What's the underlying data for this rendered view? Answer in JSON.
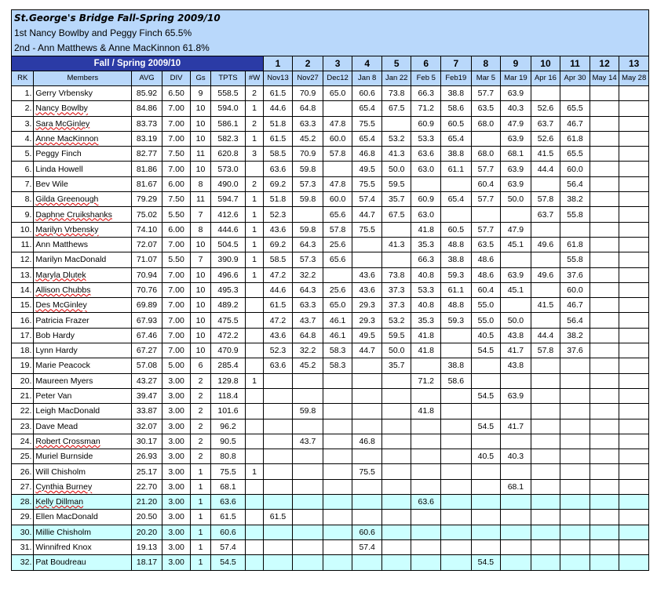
{
  "sheet": {
    "title": "St.George's Bridge Fall-Spring 2009/10",
    "line1": "1st Nancy Bowlby and Peggy Finch 65.5%",
    "line2": "2nd - Ann Matthews & Anne MacKinnon 61.8%"
  },
  "header": {
    "season": "Fall / Spring 2009/10",
    "game_numbers": [
      "1",
      "2",
      "3",
      "4",
      "5",
      "6",
      "7",
      "8",
      "9",
      "10",
      "11",
      "12",
      "13"
    ],
    "columns": [
      "RK",
      "Members",
      "AVG",
      "DIV",
      "Gs",
      "TPTS",
      "#W"
    ],
    "dates": [
      "Nov13",
      "Nov27",
      "Dec12",
      "Jan 8",
      "Jan 22",
      "Feb 5",
      "Feb19",
      "Mar 5",
      "Mar 19",
      "Apr 16",
      "Apr 30",
      "May 14",
      "May 28"
    ]
  },
  "rows": [
    {
      "rk": "1.",
      "name": "Gerry Vrbensky",
      "avg": "85.92",
      "div": "6.50",
      "gs": "9",
      "tpts": "558.5",
      "w": "2",
      "scores": [
        "61.5",
        "70.9",
        "65.0",
        "60.6",
        "73.8",
        "66.3",
        "38.8",
        "57.7",
        "63.9",
        "",
        "",
        "",
        ""
      ],
      "highlight": false
    },
    {
      "rk": "2.",
      "name": "Nancy Bowlby",
      "avg": "84.86",
      "div": "7.00",
      "gs": "10",
      "tpts": "594.0",
      "w": "1",
      "scores": [
        "44.6",
        "64.8",
        "",
        "65.4",
        "67.5",
        "71.2",
        "58.6",
        "63.5",
        "40.3",
        "52.6",
        "65.5",
        "",
        ""
      ],
      "highlight": false
    },
    {
      "rk": "3.",
      "name": "Sara McGinley",
      "avg": "83.73",
      "div": "7.00",
      "gs": "10",
      "tpts": "586.1",
      "w": "2",
      "scores": [
        "51.8",
        "63.3",
        "47.8",
        "75.5",
        "",
        "60.9",
        "60.5",
        "68.0",
        "47.9",
        "63.7",
        "46.7",
        "",
        ""
      ],
      "highlight": false
    },
    {
      "rk": "4.",
      "name": "Anne MacKinnon",
      "avg": "83.19",
      "div": "7.00",
      "gs": "10",
      "tpts": "582.3",
      "w": "1",
      "scores": [
        "61.5",
        "45.2",
        "60.0",
        "65.4",
        "53.2",
        "53.3",
        "65.4",
        "",
        "63.9",
        "52.6",
        "61.8",
        "",
        ""
      ],
      "highlight": false
    },
    {
      "rk": "5.",
      "name": "Peggy Finch",
      "avg": "82.77",
      "div": "7.50",
      "gs": "11",
      "tpts": "620.8",
      "w": "3",
      "scores": [
        "58.5",
        "70.9",
        "57.8",
        "46.8",
        "41.3",
        "63.6",
        "38.8",
        "68.0",
        "68.1",
        "41.5",
        "65.5",
        "",
        ""
      ],
      "highlight": false
    },
    {
      "rk": "6.",
      "name": "Linda Howell",
      "avg": "81.86",
      "div": "7.00",
      "gs": "10",
      "tpts": "573.0",
      "w": "",
      "scores": [
        "63.6",
        "59.8",
        "",
        "49.5",
        "50.0",
        "63.0",
        "61.1",
        "57.7",
        "63.9",
        "44.4",
        "60.0",
        "",
        ""
      ],
      "highlight": false
    },
    {
      "rk": "7.",
      "name": "Bev Wile",
      "avg": "81.67",
      "div": "6.00",
      "gs": "8",
      "tpts": "490.0",
      "w": "2",
      "scores": [
        "69.2",
        "57.3",
        "47.8",
        "75.5",
        "59.5",
        "",
        "",
        "60.4",
        "63.9",
        "",
        "56.4",
        "",
        ""
      ],
      "highlight": false
    },
    {
      "rk": "8.",
      "name": "Gilda Greenough",
      "avg": "79.29",
      "div": "7.50",
      "gs": "11",
      "tpts": "594.7",
      "w": "1",
      "scores": [
        "51.8",
        "59.8",
        "60.0",
        "57.4",
        "35.7",
        "60.9",
        "65.4",
        "57.7",
        "50.0",
        "57.8",
        "38.2",
        "",
        ""
      ],
      "highlight": false
    },
    {
      "rk": "9.",
      "name": "Daphne Cruikshanks",
      "avg": "75.02",
      "div": "5.50",
      "gs": "7",
      "tpts": "412.6",
      "w": "1",
      "scores": [
        "52.3",
        "",
        "65.6",
        "44.7",
        "67.5",
        "63.0",
        "",
        "",
        "",
        "63.7",
        "55.8",
        "",
        ""
      ],
      "highlight": false
    },
    {
      "rk": "10.",
      "name": "Marilyn Vrbensky",
      "avg": "74.10",
      "div": "6.00",
      "gs": "8",
      "tpts": "444.6",
      "w": "1",
      "scores": [
        "43.6",
        "59.8",
        "57.8",
        "75.5",
        "",
        "41.8",
        "60.5",
        "57.7",
        "47.9",
        "",
        "",
        "",
        ""
      ],
      "highlight": false
    },
    {
      "rk": "11.",
      "name": "Ann Matthews",
      "avg": "72.07",
      "div": "7.00",
      "gs": "10",
      "tpts": "504.5",
      "w": "1",
      "scores": [
        "69.2",
        "64.3",
        "25.6",
        "",
        "41.3",
        "35.3",
        "48.8",
        "63.5",
        "45.1",
        "49.6",
        "61.8",
        "",
        ""
      ],
      "highlight": false
    },
    {
      "rk": "12.",
      "name": "Marilyn MacDonald",
      "avg": "71.07",
      "div": "5.50",
      "gs": "7",
      "tpts": "390.9",
      "w": "1",
      "scores": [
        "58.5",
        "57.3",
        "65.6",
        "",
        "",
        "66.3",
        "38.8",
        "48.6",
        "",
        "",
        "55.8",
        "",
        ""
      ],
      "highlight": false
    },
    {
      "rk": "13.",
      "name": "Maryla Dlutek",
      "avg": "70.94",
      "div": "7.00",
      "gs": "10",
      "tpts": "496.6",
      "w": "1",
      "scores": [
        "47.2",
        "32.2",
        "",
        "43.6",
        "73.8",
        "40.8",
        "59.3",
        "48.6",
        "63.9",
        "49.6",
        "37.6",
        "",
        ""
      ],
      "highlight": false
    },
    {
      "rk": "14.",
      "name": "Allison Chubbs",
      "avg": "70.76",
      "div": "7.00",
      "gs": "10",
      "tpts": "495.3",
      "w": "",
      "scores": [
        "44.6",
        "64.3",
        "25.6",
        "43.6",
        "37.3",
        "53.3",
        "61.1",
        "60.4",
        "45.1",
        "",
        "60.0",
        "",
        ""
      ],
      "highlight": false
    },
    {
      "rk": "15.",
      "name": "Des McGinley",
      "avg": "69.89",
      "div": "7.00",
      "gs": "10",
      "tpts": "489.2",
      "w": "",
      "scores": [
        "61.5",
        "63.3",
        "65.0",
        "29.3",
        "37.3",
        "40.8",
        "48.8",
        "55.0",
        "",
        "41.5",
        "46.7",
        "",
        ""
      ],
      "highlight": false
    },
    {
      "rk": "16.",
      "name": "Patricia Frazer",
      "avg": "67.93",
      "div": "7.00",
      "gs": "10",
      "tpts": "475.5",
      "w": "",
      "scores": [
        "47.2",
        "43.7",
        "46.1",
        "29.3",
        "53.2",
        "35.3",
        "59.3",
        "55.0",
        "50.0",
        "",
        "56.4",
        "",
        ""
      ],
      "highlight": false
    },
    {
      "rk": "17.",
      "name": "Bob Hardy",
      "avg": "67.46",
      "div": "7.00",
      "gs": "10",
      "tpts": "472.2",
      "w": "",
      "scores": [
        "43.6",
        "64.8",
        "46.1",
        "49.5",
        "59.5",
        "41.8",
        "",
        "40.5",
        "43.8",
        "44.4",
        "38.2",
        "",
        ""
      ],
      "highlight": false
    },
    {
      "rk": "18.",
      "name": "Lynn Hardy",
      "avg": "67.27",
      "div": "7.00",
      "gs": "10",
      "tpts": "470.9",
      "w": "",
      "scores": [
        "52.3",
        "32.2",
        "58.3",
        "44.7",
        "50.0",
        "41.8",
        "",
        "54.5",
        "41.7",
        "57.8",
        "37.6",
        "",
        ""
      ],
      "highlight": false
    },
    {
      "rk": "19.",
      "name": "Marie Peacock",
      "avg": "57.08",
      "div": "5.00",
      "gs": "6",
      "tpts": "285.4",
      "w": "",
      "scores": [
        "63.6",
        "45.2",
        "58.3",
        "",
        "35.7",
        "",
        "38.8",
        "",
        "43.8",
        "",
        "",
        "",
        ""
      ],
      "highlight": false
    },
    {
      "rk": "20.",
      "name": "Maureen Myers",
      "avg": "43.27",
      "div": "3.00",
      "gs": "2",
      "tpts": "129.8",
      "w": "1",
      "scores": [
        "",
        "",
        "",
        "",
        "",
        "71.2",
        "58.6",
        "",
        "",
        "",
        "",
        "",
        ""
      ],
      "highlight": false
    },
    {
      "rk": "21.",
      "name": "Peter Van",
      "avg": "39.47",
      "div": "3.00",
      "gs": "2",
      "tpts": "118.4",
      "w": "",
      "scores": [
        "",
        "",
        "",
        "",
        "",
        "",
        "",
        "54.5",
        "63.9",
        "",
        "",
        "",
        ""
      ],
      "highlight": false
    },
    {
      "rk": "22.",
      "name": "Leigh MacDonald",
      "avg": "33.87",
      "div": "3.00",
      "gs": "2",
      "tpts": "101.6",
      "w": "",
      "scores": [
        "",
        "59.8",
        "",
        "",
        "",
        "41.8",
        "",
        "",
        "",
        "",
        "",
        "",
        ""
      ],
      "highlight": false
    },
    {
      "rk": "23.",
      "name": "Dave Mead",
      "avg": "32.07",
      "div": "3.00",
      "gs": "2",
      "tpts": "96.2",
      "w": "",
      "scores": [
        "",
        "",
        "",
        "",
        "",
        "",
        "",
        "54.5",
        "41.7",
        "",
        "",
        "",
        ""
      ],
      "highlight": false
    },
    {
      "rk": "24.",
      "name": "Robert Crossman",
      "avg": "30.17",
      "div": "3.00",
      "gs": "2",
      "tpts": "90.5",
      "w": "",
      "scores": [
        "",
        "43.7",
        "",
        "46.8",
        "",
        "",
        "",
        "",
        "",
        "",
        "",
        "",
        ""
      ],
      "highlight": false
    },
    {
      "rk": "25.",
      "name": "Muriel Burnside",
      "avg": "26.93",
      "div": "3.00",
      "gs": "2",
      "tpts": "80.8",
      "w": "",
      "scores": [
        "",
        "",
        "",
        "",
        "",
        "",
        "",
        "40.5",
        "40.3",
        "",
        "",
        "",
        ""
      ],
      "highlight": false
    },
    {
      "rk": "26.",
      "name": "Will Chisholm",
      "avg": "25.17",
      "div": "3.00",
      "gs": "1",
      "tpts": "75.5",
      "w": "1",
      "scores": [
        "",
        "",
        "",
        "75.5",
        "",
        "",
        "",
        "",
        "",
        "",
        "",
        "",
        ""
      ],
      "highlight": false
    },
    {
      "rk": "27.",
      "name": "Cynthia Burney",
      "avg": "22.70",
      "div": "3.00",
      "gs": "1",
      "tpts": "68.1",
      "w": "",
      "scores": [
        "",
        "",
        "",
        "",
        "",
        "",
        "",
        "",
        "68.1",
        "",
        "",
        "",
        ""
      ],
      "highlight": false
    },
    {
      "rk": "28.",
      "name": "Kelly Dillman",
      "avg": "21.20",
      "div": "3.00",
      "gs": "1",
      "tpts": "63.6",
      "w": "",
      "scores": [
        "",
        "",
        "",
        "",
        "",
        "63.6",
        "",
        "",
        "",
        "",
        "",
        "",
        ""
      ],
      "highlight": true
    },
    {
      "rk": "29.",
      "name": "Ellen MacDonald",
      "avg": "20.50",
      "div": "3.00",
      "gs": "1",
      "tpts": "61.5",
      "w": "",
      "scores": [
        "61.5",
        "",
        "",
        "",
        "",
        "",
        "",
        "",
        "",
        "",
        "",
        "",
        ""
      ],
      "highlight": false
    },
    {
      "rk": "30.",
      "name": "Millie Chisholm",
      "avg": "20.20",
      "div": "3.00",
      "gs": "1",
      "tpts": "60.6",
      "w": "",
      "scores": [
        "",
        "",
        "",
        "60.6",
        "",
        "",
        "",
        "",
        "",
        "",
        "",
        "",
        ""
      ],
      "highlight": true
    },
    {
      "rk": "31.",
      "name": "Winnifred Knox",
      "avg": "19.13",
      "div": "3.00",
      "gs": "1",
      "tpts": "57.4",
      "w": "",
      "scores": [
        "",
        "",
        "",
        "57.4",
        "",
        "",
        "",
        "",
        "",
        "",
        "",
        "",
        ""
      ],
      "highlight": false
    },
    {
      "rk": "32.",
      "name": "Pat Boudreau",
      "avg": "18.17",
      "div": "3.00",
      "gs": "1",
      "tpts": "54.5",
      "w": "",
      "scores": [
        "",
        "",
        "",
        "",
        "",
        "",
        "",
        "54.5",
        "",
        "",
        "",
        "",
        ""
      ],
      "highlight": true
    }
  ]
}
